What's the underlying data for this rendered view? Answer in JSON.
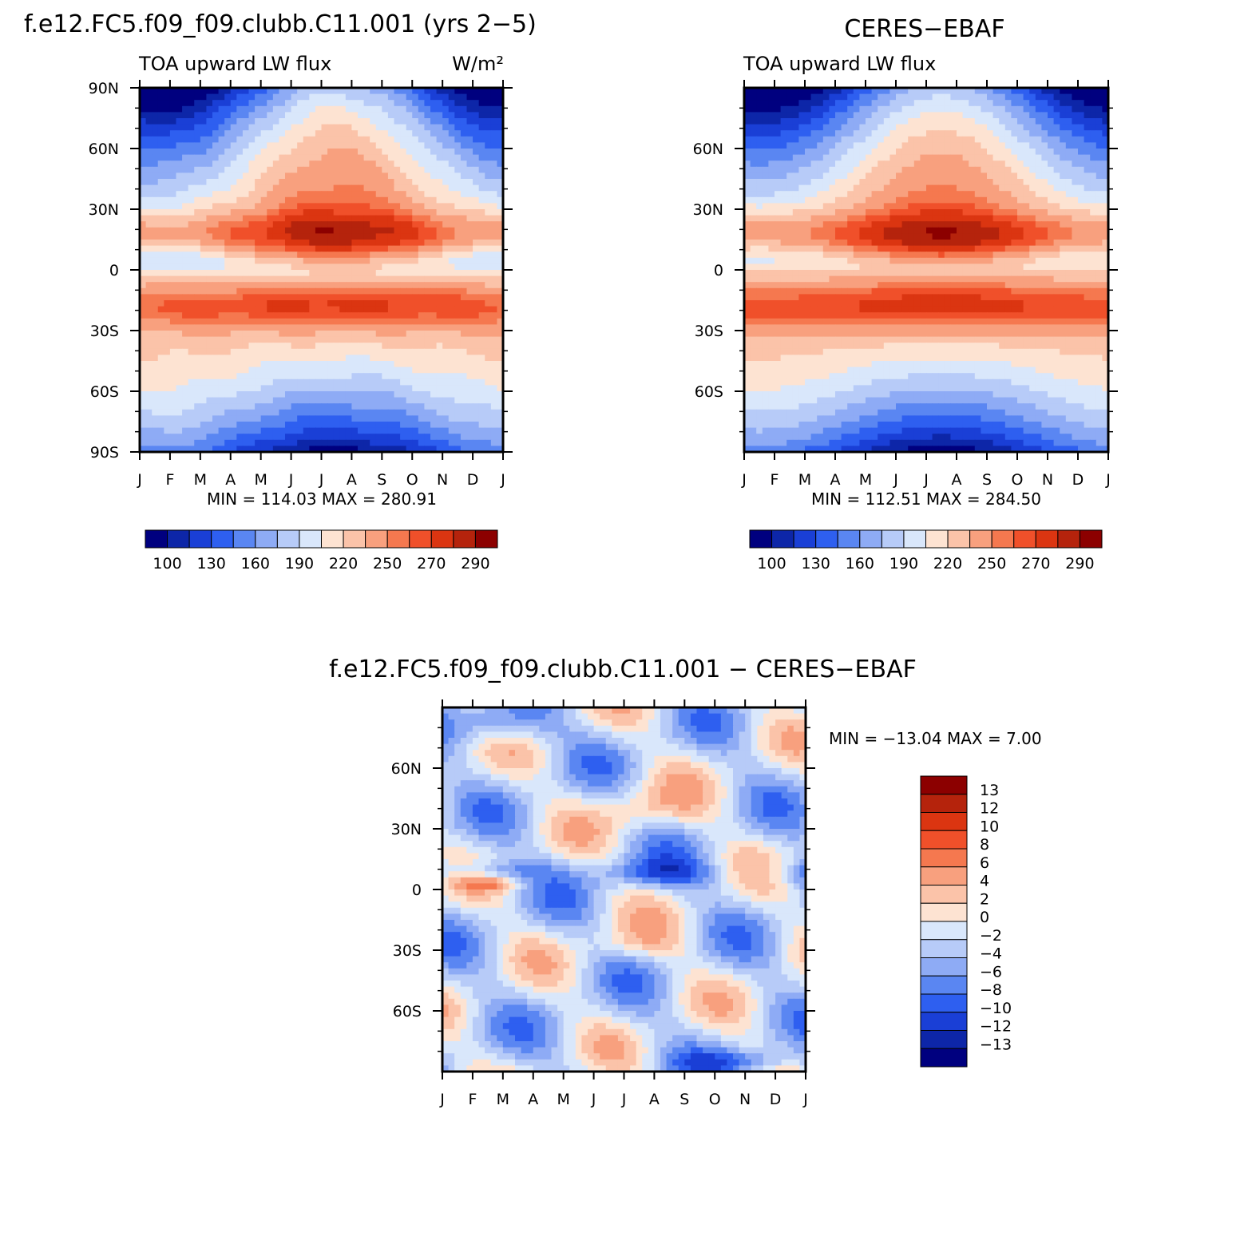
{
  "figure": {
    "model_title": "f.e12.FC5.f09_f09.clubb.C11.001 (yrs 2−5)",
    "obs_title": "CERES−EBAF",
    "diff_title": "f.e12.FC5.f09_f09.clubb.C11.001 − CERES−EBAF",
    "variable": "TOA upward LW flux",
    "units": "W/m²"
  },
  "chart_data": [
    {
      "id": "model",
      "type": "heatmap",
      "title": "TOA upward LW flux",
      "subtitle": "f.e12.FC5.f09_f09.clubb.C11.001 (yrs 2−5)",
      "units": "W/m²",
      "x_tick_labels": [
        "J",
        "F",
        "M",
        "A",
        "M",
        "J",
        "J",
        "A",
        "S",
        "O",
        "N",
        "D",
        "J"
      ],
      "y_tick_labels": [
        "90N",
        "60N",
        "30N",
        "0",
        "30S",
        "60S",
        "90S"
      ],
      "y_tick_values": [
        90,
        60,
        30,
        0,
        -30,
        -60,
        -90
      ],
      "ylim": [
        -90,
        90
      ],
      "stats": "MIN =  114.03 MAX =  280.91",
      "min": 114.03,
      "max": 280.91,
      "contour_levels": [
        100,
        115,
        130,
        145,
        160,
        175,
        190,
        205,
        220,
        235,
        250,
        260,
        270,
        280,
        290
      ],
      "colorbar_labels": [
        "100",
        "130",
        "160",
        "190",
        "220",
        "250",
        "270",
        "290"
      ],
      "field": "zonal_mean_toa_lw_model"
    },
    {
      "id": "obs",
      "type": "heatmap",
      "title": "TOA upward LW flux",
      "subtitle": "CERES−EBAF",
      "x_tick_labels": [
        "J",
        "F",
        "M",
        "A",
        "M",
        "J",
        "J",
        "A",
        "S",
        "O",
        "N",
        "D",
        "J"
      ],
      "y_tick_labels": [
        "60N",
        "30N",
        "0",
        "30S",
        "60S"
      ],
      "y_tick_values": [
        60,
        30,
        0,
        -30,
        -60
      ],
      "ylim": [
        -90,
        90
      ],
      "stats": "MIN =  112.51  MAX =  284.50",
      "min": 112.51,
      "max": 284.5,
      "contour_levels": [
        100,
        115,
        130,
        145,
        160,
        175,
        190,
        205,
        220,
        235,
        250,
        260,
        270,
        280,
        290
      ],
      "colorbar_labels": [
        "100",
        "130",
        "160",
        "190",
        "220",
        "250",
        "270",
        "290"
      ],
      "field": "zonal_mean_toa_lw_obs"
    },
    {
      "id": "diff",
      "type": "heatmap",
      "title": "f.e12.FC5.f09_f09.clubb.C11.001 − CERES−EBAF",
      "x_tick_labels": [
        "J",
        "F",
        "M",
        "A",
        "M",
        "J",
        "J",
        "A",
        "S",
        "O",
        "N",
        "D",
        "J"
      ],
      "y_tick_labels": [
        "60N",
        "30N",
        "0",
        "30S",
        "60S"
      ],
      "y_tick_values": [
        60,
        30,
        0,
        -30,
        -60
      ],
      "ylim": [
        -90,
        90
      ],
      "stats": "MIN = −13.04 MAX =    7.00",
      "min": -13.04,
      "max": 7.0,
      "contour_levels": [
        -13,
        -12,
        -10,
        -8,
        -6,
        -4,
        -2,
        0,
        2,
        4,
        6,
        8,
        10,
        12,
        13
      ],
      "colorbar_labels": [
        "13",
        "12",
        "10",
        "8",
        "6",
        "4",
        "2",
        "0",
        "−2",
        "−4",
        "−6",
        "−8",
        "−10",
        "−12",
        "−13"
      ],
      "field": "zonal_mean_toa_lw_diff"
    }
  ],
  "palette": [
    "#00007f",
    "#0d26a8",
    "#1a3fd6",
    "#2e5ff0",
    "#5a86f2",
    "#8eabf5",
    "#b7cbf8",
    "#d9e7fb",
    "#fde3d2",
    "#fbc3a9",
    "#f8a07e",
    "#f5784f",
    "#f0502a",
    "#db3511",
    "#b5230c",
    "#8c0000"
  ]
}
